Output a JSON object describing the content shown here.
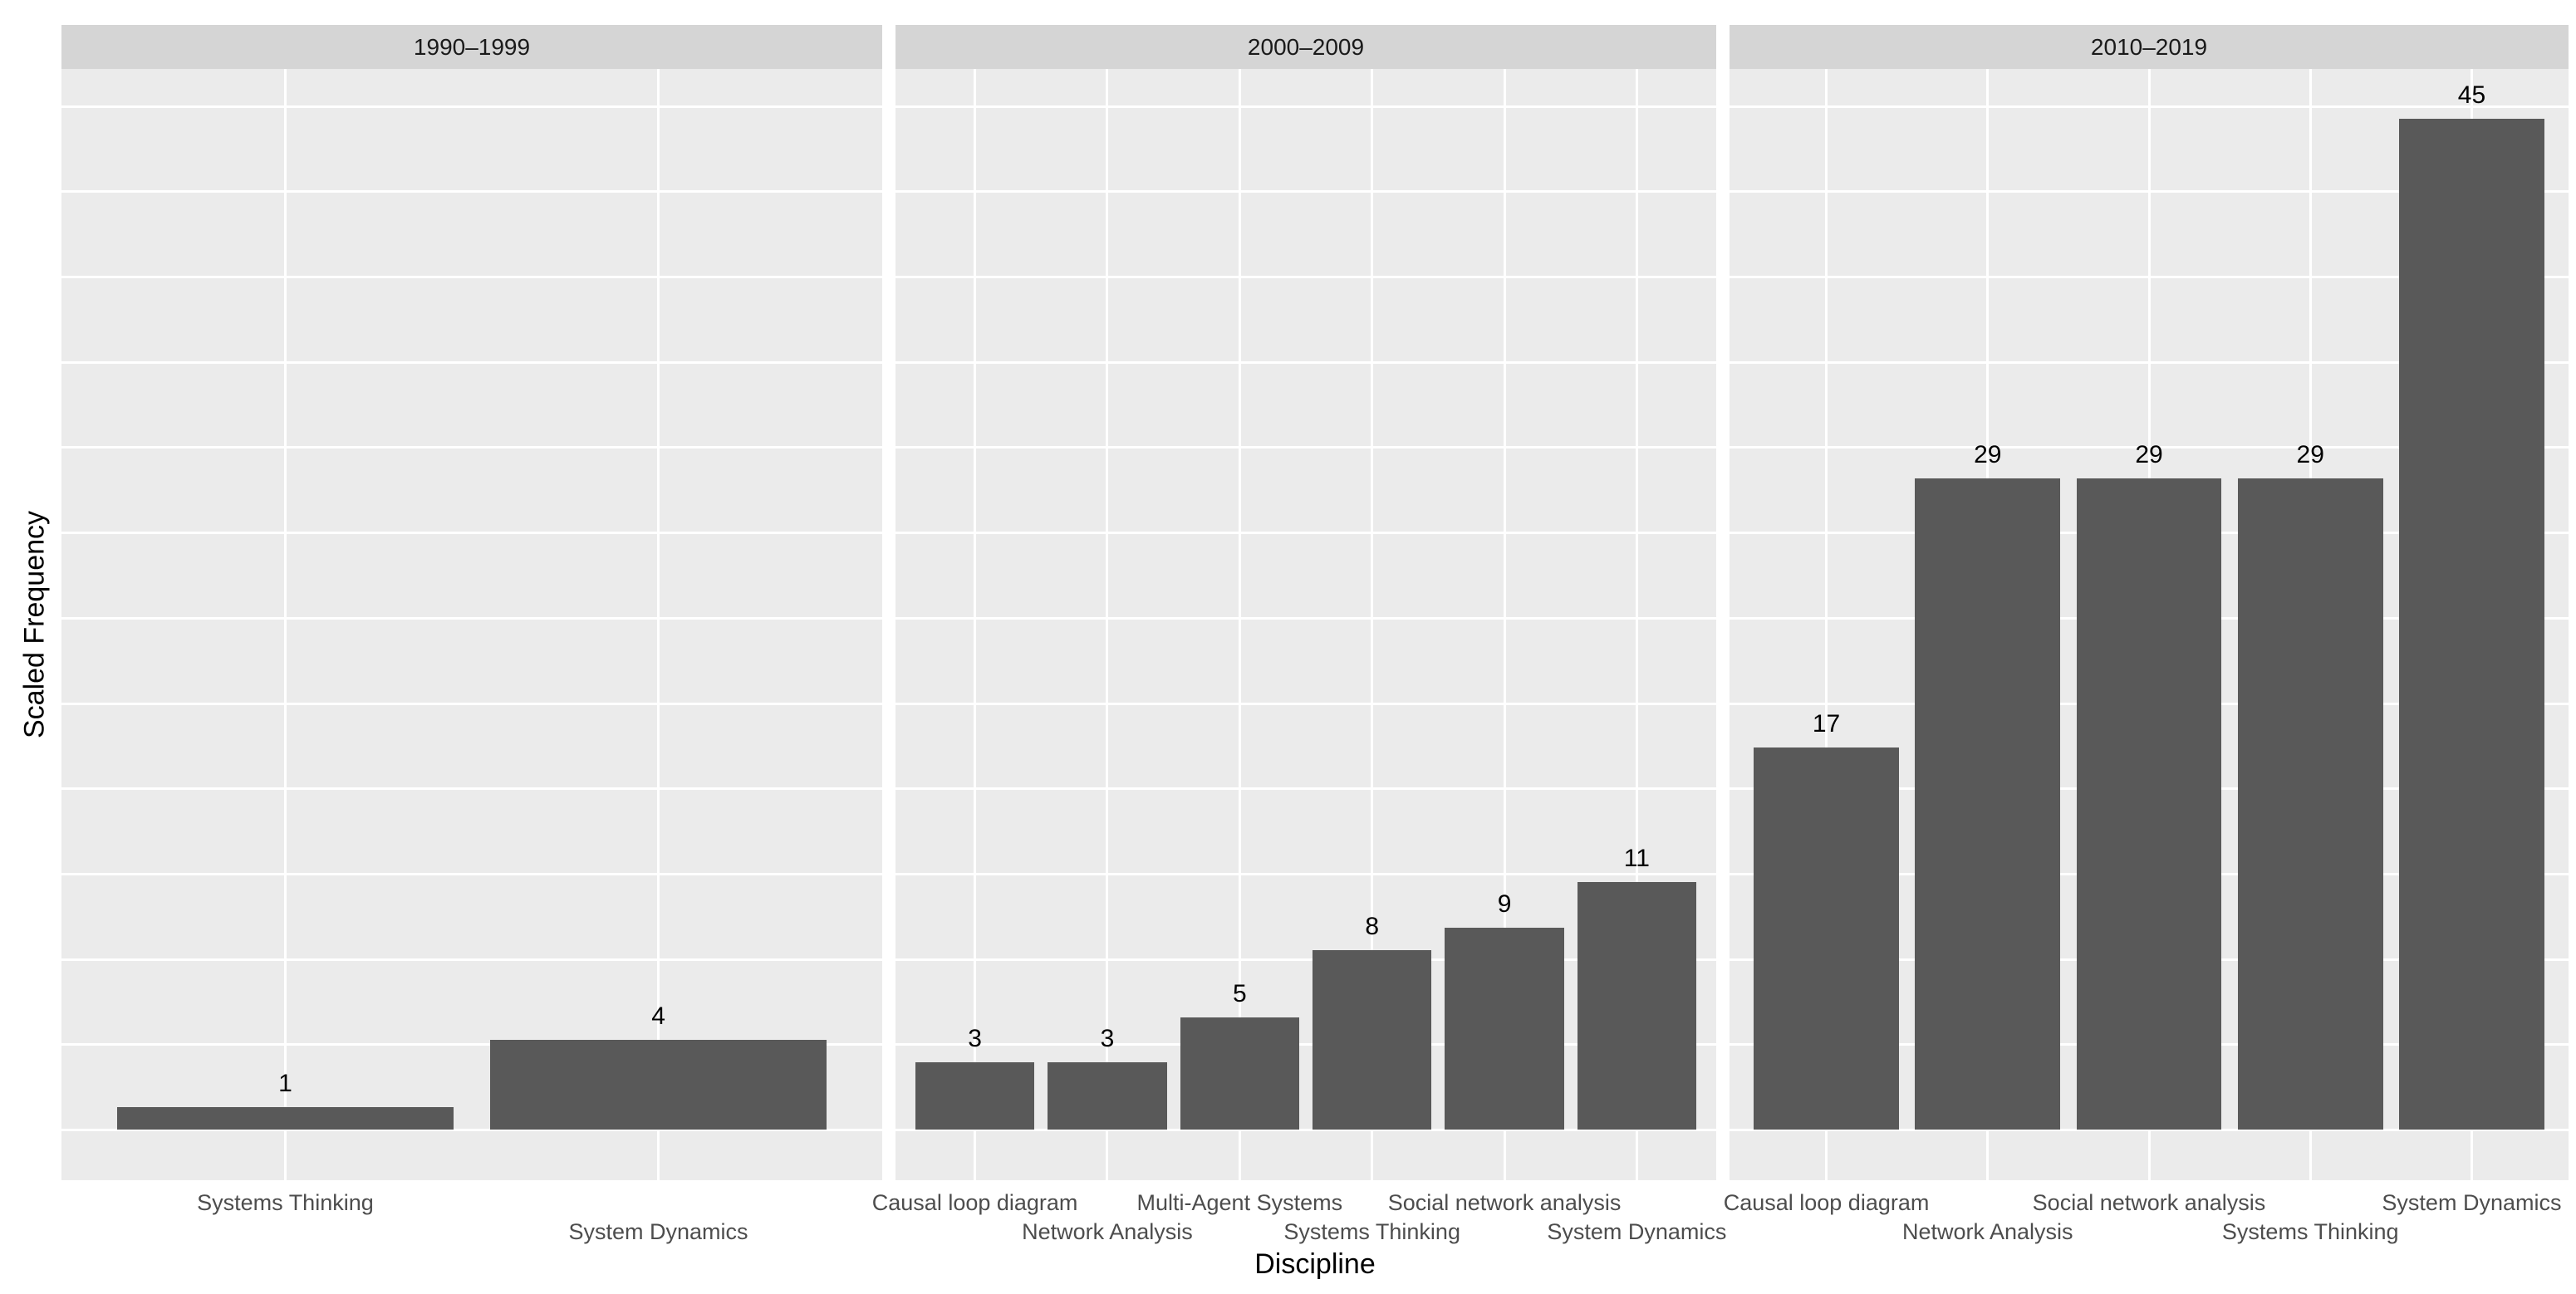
{
  "x_axis_title": "Discipline",
  "y_axis_title": "Scaled Frequency",
  "chart_data": {
    "type": "bar",
    "title": "",
    "xlabel": "Discipline",
    "ylabel": "Scaled Frequency",
    "ylim": [
      0,
      45
    ],
    "y_tick_labels_visible": false,
    "grid": true,
    "legend": false,
    "bar_color": "#595959",
    "panel_bg": "#ebebeb",
    "strip_bg": "#d5d5d5",
    "gridline_color": "#ffffff",
    "facets": [
      {
        "label": "1990–1999",
        "categories": [
          "Systems Thinking",
          "System Dynamics"
        ],
        "values": [
          1,
          4
        ]
      },
      {
        "label": "2000–2009",
        "categories": [
          "Causal loop diagram",
          "Network Analysis",
          "Multi-Agent Systems",
          "Systems Thinking",
          "Social network analysis",
          "System Dynamics"
        ],
        "values": [
          3,
          3,
          5,
          8,
          9,
          11
        ]
      },
      {
        "label": "2010–2019",
        "categories": [
          "Causal loop diagram",
          "Network Analysis",
          "Social network analysis",
          "Systems Thinking",
          "System Dynamics"
        ],
        "values": [
          17,
          29,
          29,
          29,
          45
        ]
      }
    ]
  }
}
